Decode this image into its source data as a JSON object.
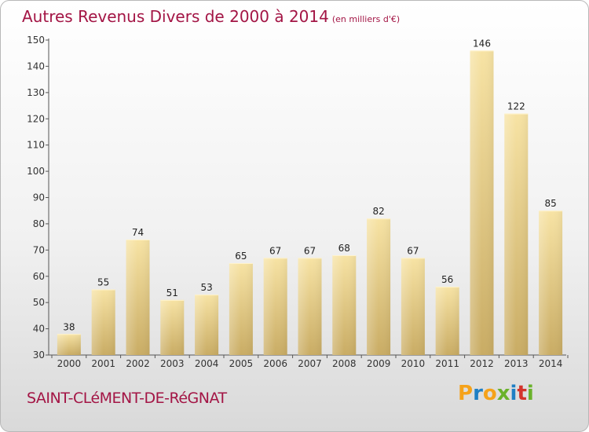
{
  "title": {
    "main": "Autres Revenus Divers de 2000 à 2014",
    "unit": "(en milliers d'€)"
  },
  "commune": "SAINT-CLéMENT-DE-RéGNAT",
  "logo": {
    "letters": [
      "P",
      "r",
      "o",
      "x",
      "i",
      "t",
      "i"
    ],
    "colors": [
      "#f5a21a",
      "#1f7fc4",
      "#f5a21a",
      "#6ab22b",
      "#1f7fc4",
      "#d3342c",
      "#6ab22b"
    ]
  },
  "chart_data": {
    "type": "bar",
    "categories": [
      "2000",
      "2001",
      "2002",
      "2003",
      "2004",
      "2005",
      "2006",
      "2007",
      "2008",
      "2009",
      "2010",
      "2011",
      "2012",
      "2013",
      "2014"
    ],
    "values": [
      38,
      55,
      74,
      51,
      53,
      65,
      67,
      67,
      68,
      82,
      67,
      56,
      146,
      122,
      85
    ],
    "title": "Autres Revenus Divers de 2000 à 2014",
    "ylim": [
      30,
      150
    ],
    "yticks": [
      30,
      40,
      50,
      60,
      70,
      80,
      90,
      100,
      110,
      120,
      130,
      140,
      150
    ],
    "grid": false,
    "bar_color": "#e9cf86"
  }
}
